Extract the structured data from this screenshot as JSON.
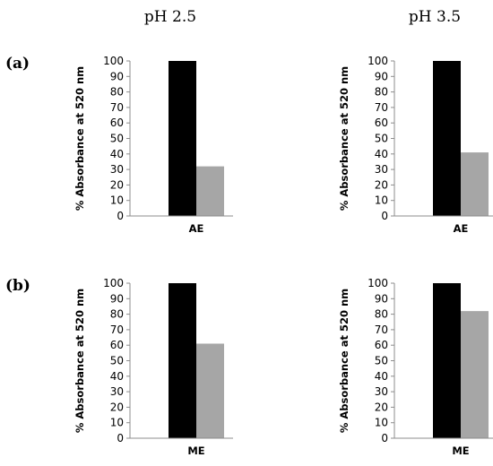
{
  "column_titles": [
    "pH 2.5",
    "pH 3.5"
  ],
  "row_labels": [
    "(a)",
    "(b)"
  ],
  "series_colors": [
    "#000000",
    "#a6a6a6"
  ],
  "chart_data": [
    {
      "type": "bar",
      "categories": [
        "AE"
      ],
      "series": [
        {
          "values": [
            100
          ]
        },
        {
          "values": [
            32
          ]
        }
      ],
      "ylabel": "% Absorbance at 520 nm",
      "ylim": [
        0,
        100
      ],
      "yticks": [
        0,
        10,
        20,
        30,
        40,
        50,
        60,
        70,
        80,
        90,
        100
      ]
    },
    {
      "type": "bar",
      "categories": [
        "AE"
      ],
      "series": [
        {
          "values": [
            100
          ]
        },
        {
          "values": [
            41
          ]
        }
      ],
      "ylabel": "% Absorbance at 520 nm",
      "ylim": [
        0,
        100
      ],
      "yticks": [
        0,
        10,
        20,
        30,
        40,
        50,
        60,
        70,
        80,
        90,
        100
      ]
    },
    {
      "type": "bar",
      "categories": [
        "ME"
      ],
      "series": [
        {
          "values": [
            100
          ]
        },
        {
          "values": [
            61
          ]
        }
      ],
      "ylabel": "% Absorbance at 520 nm",
      "ylim": [
        0,
        100
      ],
      "yticks": [
        0,
        10,
        20,
        30,
        40,
        50,
        60,
        70,
        80,
        90,
        100
      ]
    },
    {
      "type": "bar",
      "categories": [
        "ME"
      ],
      "series": [
        {
          "values": [
            100
          ]
        },
        {
          "values": [
            82
          ]
        }
      ],
      "ylabel": "% Absorbance at 520 nm",
      "ylim": [
        0,
        100
      ],
      "yticks": [
        0,
        10,
        20,
        30,
        40,
        50,
        60,
        70,
        80,
        90,
        100
      ]
    }
  ]
}
